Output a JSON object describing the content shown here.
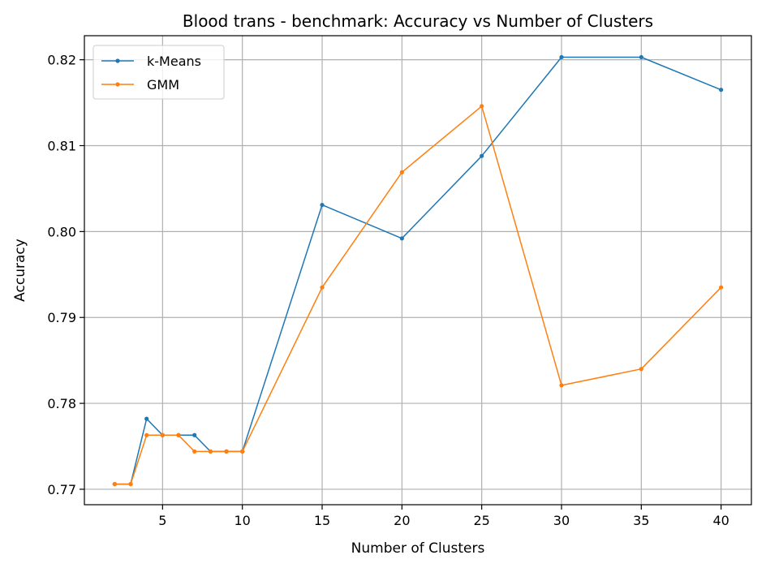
{
  "chart_data": {
    "type": "line",
    "title": "Blood trans - benchmark: Accuracy vs Number of Clusters",
    "xlabel": "Number of Clusters",
    "ylabel": "Accuracy",
    "xlim": [
      0.1,
      41.9
    ],
    "ylim": [
      0.7682,
      0.8228
    ],
    "xticks": [
      5,
      10,
      15,
      20,
      25,
      30,
      35,
      40
    ],
    "xtick_labels": [
      "5",
      "10",
      "15",
      "20",
      "25",
      "30",
      "35",
      "40"
    ],
    "yticks": [
      0.77,
      0.78,
      0.79,
      0.8,
      0.81,
      0.82
    ],
    "ytick_labels": [
      "0.77",
      "0.78",
      "0.79",
      "0.80",
      "0.81",
      "0.82"
    ],
    "grid": true,
    "legend_position": "top-left",
    "x": [
      2,
      3,
      4,
      5,
      6,
      7,
      8,
      9,
      10,
      15,
      20,
      25,
      30,
      35,
      40
    ],
    "series": [
      {
        "name": "k-Means",
        "color": "#1f77b4",
        "values": [
          0.7706,
          0.7706,
          0.7782,
          0.7763,
          0.7763,
          0.7763,
          0.7744,
          0.7744,
          0.7744,
          0.8031,
          0.7992,
          0.8088,
          0.8203,
          0.8203,
          0.8165
        ]
      },
      {
        "name": "GMM",
        "color": "#ff7f0e",
        "values": [
          0.7706,
          0.7706,
          0.7763,
          0.7763,
          0.7763,
          0.7744,
          0.7744,
          0.7744,
          0.7744,
          0.7935,
          0.8069,
          0.8146,
          0.7821,
          0.784,
          0.7935
        ]
      }
    ]
  }
}
